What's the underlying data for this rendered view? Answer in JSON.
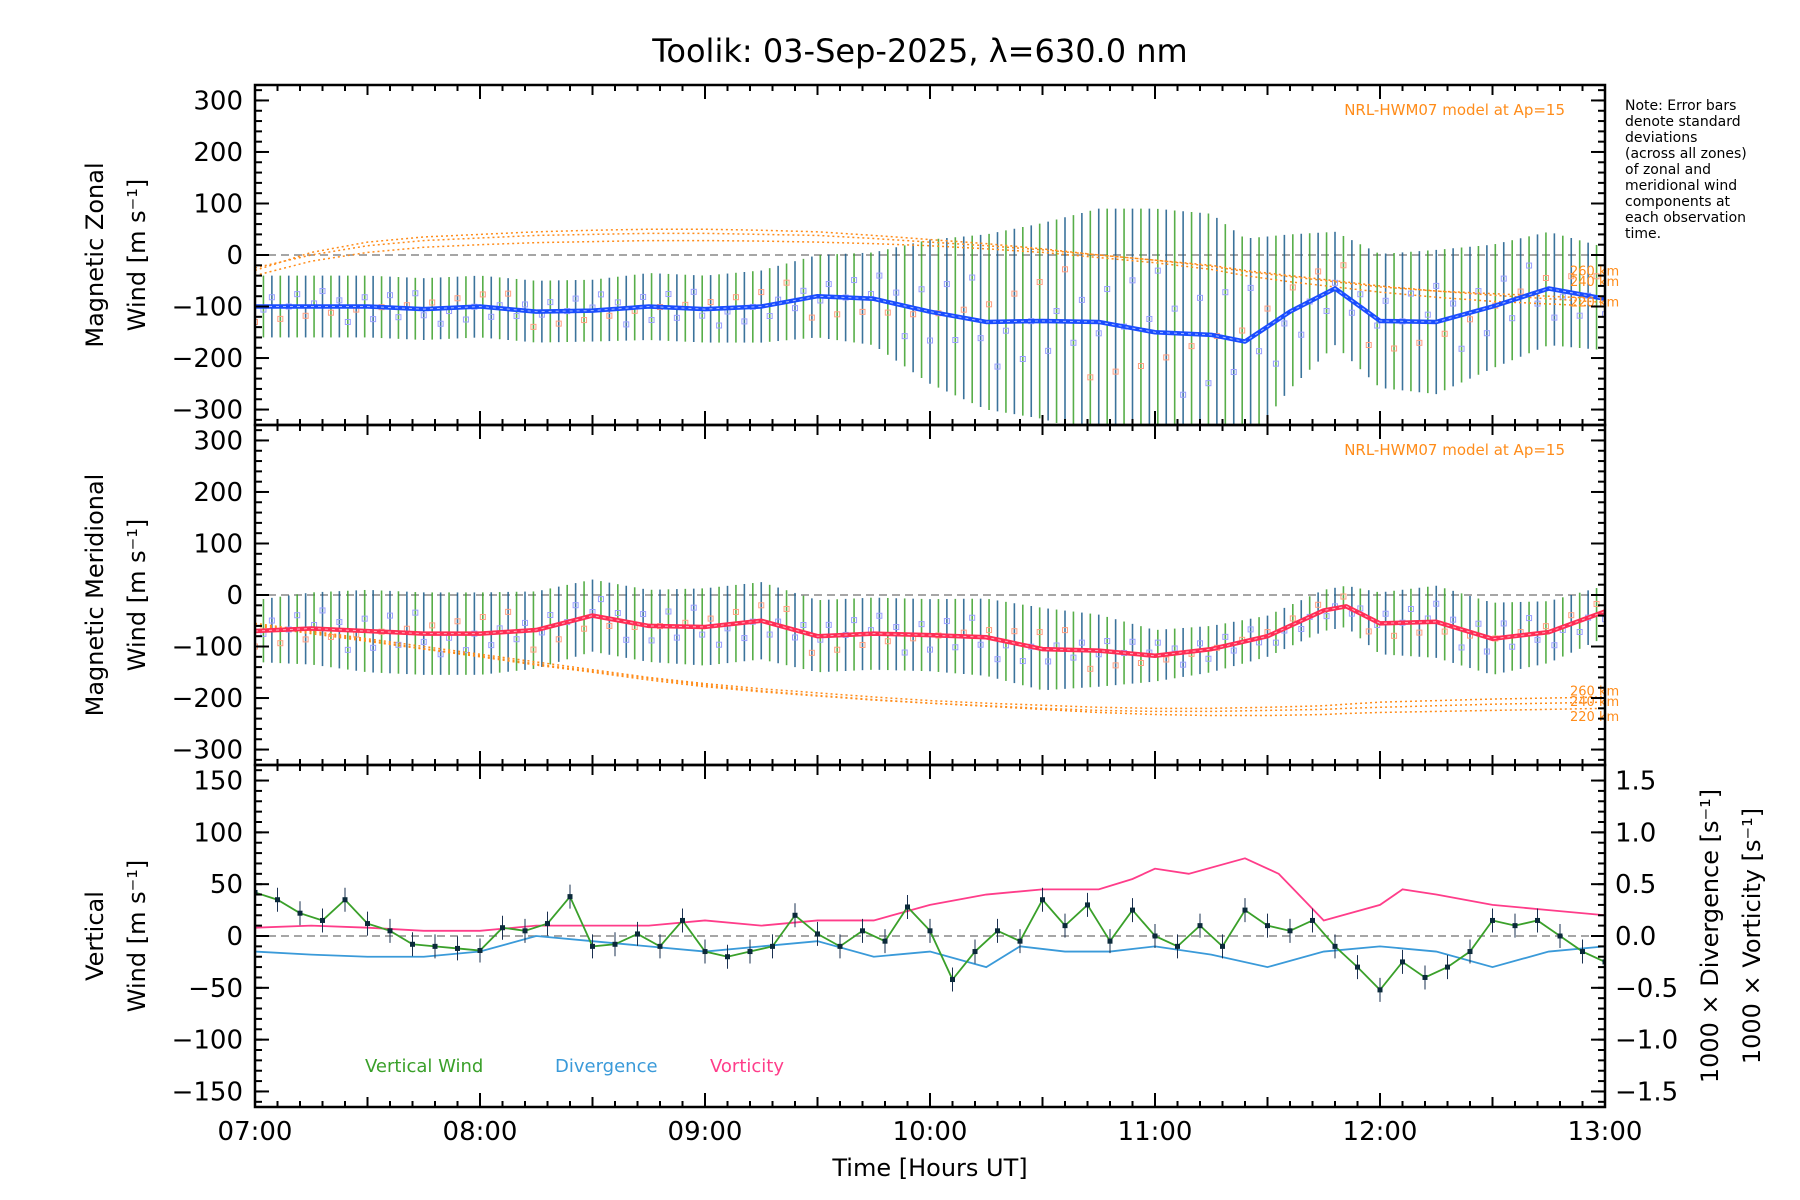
{
  "title": "Toolik: 03-Sep-2025, λ=630.0 nm",
  "note_lines": [
    "Note: Error bars",
    "denote standard",
    "deviations",
    "(across all zones)",
    "of zonal and",
    "meridional wind",
    "components at",
    "each observation",
    "time."
  ],
  "colors": {
    "zonal": "#1a4dff",
    "meridional": "#ff2d55",
    "vertical": "#3aa02a",
    "divergence": "#3a9ad9",
    "vorticity": "#ff3d8a",
    "model": "#ff8c1a",
    "errbar_a": "#1a5b8a",
    "errbar_b": "#3aa02a"
  },
  "chart_data": [
    {
      "type": "line",
      "id": "zonal",
      "ylabel_line1": "Magnetic Zonal",
      "ylabel_line2": "Wind [m s",
      "ylabel_sup": "-1",
      "ylabel_end": "]",
      "ylim": [
        -330,
        330
      ],
      "yticks": [
        "300",
        "200",
        "100",
        "0",
        "−100",
        "−200",
        "−300"
      ],
      "ytick_values": [
        300,
        200,
        100,
        0,
        -100,
        -200,
        -300
      ],
      "model_label": "NRL-HWM07 model at Ap=15",
      "alt_labels": [
        "260 km",
        "240 km",
        "220 km"
      ],
      "alt_values": [
        -40,
        -60,
        -100
      ],
      "x": [
        7.0,
        7.25,
        7.5,
        7.75,
        8.0,
        8.25,
        8.5,
        8.75,
        9.0,
        9.25,
        9.5,
        9.75,
        10.0,
        10.25,
        10.5,
        10.75,
        11.0,
        11.25,
        11.4,
        11.6,
        11.8,
        12.0,
        12.25,
        12.5,
        12.75,
        13.0
      ],
      "mean": [
        -100,
        -100,
        -100,
        -105,
        -100,
        -110,
        -108,
        -100,
        -105,
        -100,
        -80,
        -85,
        -110,
        -130,
        -128,
        -130,
        -150,
        -155,
        -168,
        -110,
        -65,
        -128,
        -130,
        -100,
        -65,
        -85
      ],
      "err": [
        60,
        60,
        60,
        60,
        60,
        60,
        60,
        65,
        65,
        70,
        80,
        90,
        140,
        170,
        190,
        220,
        240,
        235,
        200,
        150,
        110,
        130,
        140,
        120,
        110,
        100
      ],
      "model": [
        {
          "name": "260 km",
          "values": [
            -30,
            5,
            25,
            35,
            40,
            45,
            48,
            50,
            50,
            48,
            45,
            38,
            30,
            22,
            12,
            0,
            -10,
            -20,
            -30,
            -40,
            -50,
            -60,
            -70,
            -75,
            -80,
            -85
          ]
        },
        {
          "name": "240 km",
          "values": [
            -25,
            0,
            18,
            28,
            33,
            38,
            40,
            42,
            42,
            40,
            38,
            32,
            25,
            18,
            10,
            0,
            -10,
            -22,
            -32,
            -42,
            -52,
            -62,
            -70,
            -78,
            -85,
            -92
          ]
        },
        {
          "name": "220 km",
          "values": [
            -40,
            -12,
            5,
            15,
            20,
            24,
            26,
            28,
            28,
            27,
            25,
            22,
            18,
            12,
            5,
            -5,
            -15,
            -28,
            -40,
            -52,
            -62,
            -72,
            -82,
            -90,
            -95,
            -100
          ]
        }
      ]
    },
    {
      "type": "line",
      "id": "meridional",
      "ylabel_line1": "Magnetic Meridional",
      "ylabel_line2": "Wind [m s",
      "ylabel_sup": "-1",
      "ylabel_end": "]",
      "ylim": [
        -330,
        330
      ],
      "yticks": [
        "300",
        "200",
        "100",
        "0",
        "−100",
        "−200",
        "−300"
      ],
      "ytick_values": [
        300,
        200,
        100,
        0,
        -100,
        -200,
        -300
      ],
      "model_label": "NRL-HWM07 model at Ap=15",
      "alt_labels": [
        "260 km",
        "240 km",
        "220 km"
      ],
      "alt_values": [
        -195,
        -215,
        -245
      ],
      "x": [
        7.0,
        7.25,
        7.5,
        7.75,
        8.0,
        8.25,
        8.5,
        8.75,
        9.0,
        9.25,
        9.5,
        9.75,
        10.0,
        10.25,
        10.5,
        10.75,
        11.0,
        11.25,
        11.5,
        11.75,
        11.85,
        12.0,
        12.25,
        12.5,
        12.75,
        13.0
      ],
      "mean": [
        -70,
        -65,
        -70,
        -75,
        -75,
        -68,
        -40,
        -60,
        -62,
        -50,
        -80,
        -75,
        -78,
        -82,
        -105,
        -108,
        -118,
        -105,
        -80,
        -30,
        -22,
        -55,
        -52,
        -85,
        -72,
        -32
      ],
      "err": [
        60,
        70,
        80,
        80,
        80,
        75,
        70,
        70,
        75,
        75,
        70,
        70,
        70,
        75,
        80,
        70,
        50,
        45,
        40,
        40,
        40,
        60,
        70,
        70,
        60,
        50
      ],
      "model": [
        {
          "name": "260 km",
          "values": [
            -55,
            -70,
            -85,
            -100,
            -115,
            -130,
            -145,
            -160,
            -172,
            -182,
            -190,
            -198,
            -205,
            -210,
            -214,
            -218,
            -220,
            -220,
            -218,
            -215,
            -212,
            -208,
            -205,
            -202,
            -200,
            -198
          ]
        },
        {
          "name": "240 km",
          "values": [
            -60,
            -75,
            -90,
            -105,
            -120,
            -136,
            -150,
            -165,
            -178,
            -188,
            -196,
            -204,
            -210,
            -215,
            -220,
            -224,
            -226,
            -226,
            -224,
            -222,
            -220,
            -218,
            -215,
            -212,
            -210,
            -208
          ]
        },
        {
          "name": "220 km",
          "values": [
            -58,
            -72,
            -88,
            -104,
            -118,
            -134,
            -148,
            -162,
            -175,
            -186,
            -195,
            -203,
            -210,
            -216,
            -222,
            -228,
            -232,
            -234,
            -234,
            -232,
            -230,
            -228,
            -226,
            -224,
            -222,
            -220
          ]
        }
      ]
    },
    {
      "type": "line",
      "id": "vertical",
      "ylabel_line1": "Vertical",
      "ylabel_line2": "Wind [m s",
      "ylabel_sup": "-1",
      "ylabel_end": "]",
      "ylim": [
        -165,
        165
      ],
      "yticks": [
        "150",
        "100",
        "50",
        "0",
        "−50",
        "−100",
        "−150"
      ],
      "ytick_values": [
        150,
        100,
        50,
        0,
        -50,
        -100,
        -150
      ],
      "right_ylim": [
        -1.65,
        1.65
      ],
      "right_yticks": [
        "1.5",
        "1.0",
        "0.5",
        "0.0",
        "−0.5",
        "−1.0",
        "−1.5"
      ],
      "right_ytick_values": [
        1.5,
        1.0,
        0.5,
        0.0,
        -0.5,
        -1.0,
        -1.5
      ],
      "right_label_div": "1000 × Divergence [s",
      "right_label_vor": "1000 × Vorticity [s",
      "right_label_sup": "-1",
      "right_label_end": "]",
      "legend": [
        "Vertical Wind",
        "Divergence",
        "Vorticity"
      ],
      "vertical_x": [
        7.0,
        7.1,
        7.2,
        7.3,
        7.4,
        7.5,
        7.6,
        7.7,
        7.8,
        7.9,
        8.0,
        8.1,
        8.2,
        8.3,
        8.4,
        8.5,
        8.6,
        8.7,
        8.8,
        8.9,
        9.0,
        9.1,
        9.2,
        9.3,
        9.4,
        9.5,
        9.6,
        9.7,
        9.8,
        9.9,
        10.0,
        10.1,
        10.2,
        10.3,
        10.4,
        10.5,
        10.6,
        10.7,
        10.8,
        10.9,
        11.0,
        11.1,
        11.2,
        11.3,
        11.4,
        11.5,
        11.6,
        11.7,
        11.8,
        11.9,
        12.0,
        12.1,
        12.2,
        12.3,
        12.4,
        12.5,
        12.6,
        12.7,
        12.8,
        12.9,
        13.0
      ],
      "vertical": [
        42,
        35,
        22,
        15,
        35,
        12,
        5,
        -8,
        -10,
        -12,
        -14,
        8,
        5,
        12,
        38,
        -10,
        -8,
        2,
        -10,
        15,
        -15,
        -20,
        -15,
        -10,
        20,
        2,
        -10,
        5,
        -5,
        28,
        5,
        -42,
        -15,
        5,
        -5,
        35,
        10,
        30,
        -5,
        25,
        0,
        -10,
        10,
        -10,
        25,
        10,
        5,
        15,
        -10,
        -30,
        -52,
        -25,
        -40,
        -30,
        -15,
        15,
        10,
        15,
        0,
        -15,
        -25
      ],
      "divergence_x": [
        7.0,
        7.25,
        7.5,
        7.75,
        8.0,
        8.25,
        8.5,
        8.75,
        9.0,
        9.25,
        9.5,
        9.75,
        10.0,
        10.25,
        10.4,
        10.6,
        10.8,
        11.0,
        11.25,
        11.5,
        11.75,
        12.0,
        12.25,
        12.5,
        12.75,
        13.0
      ],
      "divergence": [
        -0.15,
        -0.18,
        -0.2,
        -0.2,
        -0.15,
        0.0,
        -0.05,
        -0.1,
        -0.15,
        -0.1,
        -0.05,
        -0.2,
        -0.15,
        -0.3,
        -0.1,
        -0.15,
        -0.15,
        -0.1,
        -0.18,
        -0.3,
        -0.15,
        -0.1,
        -0.15,
        -0.3,
        -0.15,
        -0.1
      ],
      "vorticity_x": [
        7.0,
        7.25,
        7.5,
        7.75,
        8.0,
        8.25,
        8.5,
        8.75,
        9.0,
        9.25,
        9.5,
        9.75,
        10.0,
        10.25,
        10.5,
        10.75,
        10.9,
        11.0,
        11.15,
        11.4,
        11.55,
        11.75,
        12.0,
        12.1,
        12.25,
        12.5,
        12.75,
        13.0
      ],
      "vorticity": [
        0.08,
        0.1,
        0.08,
        0.05,
        0.05,
        0.1,
        0.1,
        0.1,
        0.15,
        0.1,
        0.15,
        0.15,
        0.3,
        0.4,
        0.45,
        0.45,
        0.55,
        0.65,
        0.6,
        0.75,
        0.6,
        0.15,
        0.3,
        0.45,
        0.4,
        0.3,
        0.25,
        0.2
      ]
    }
  ],
  "xticks": [
    "07:00",
    "08:00",
    "09:00",
    "10:00",
    "11:00",
    "12:00",
    "13:00"
  ],
  "xtick_values": [
    7,
    8,
    9,
    10,
    11,
    12,
    13
  ],
  "xlim": [
    7,
    13
  ],
  "xlabel": "Time [Hours UT]"
}
